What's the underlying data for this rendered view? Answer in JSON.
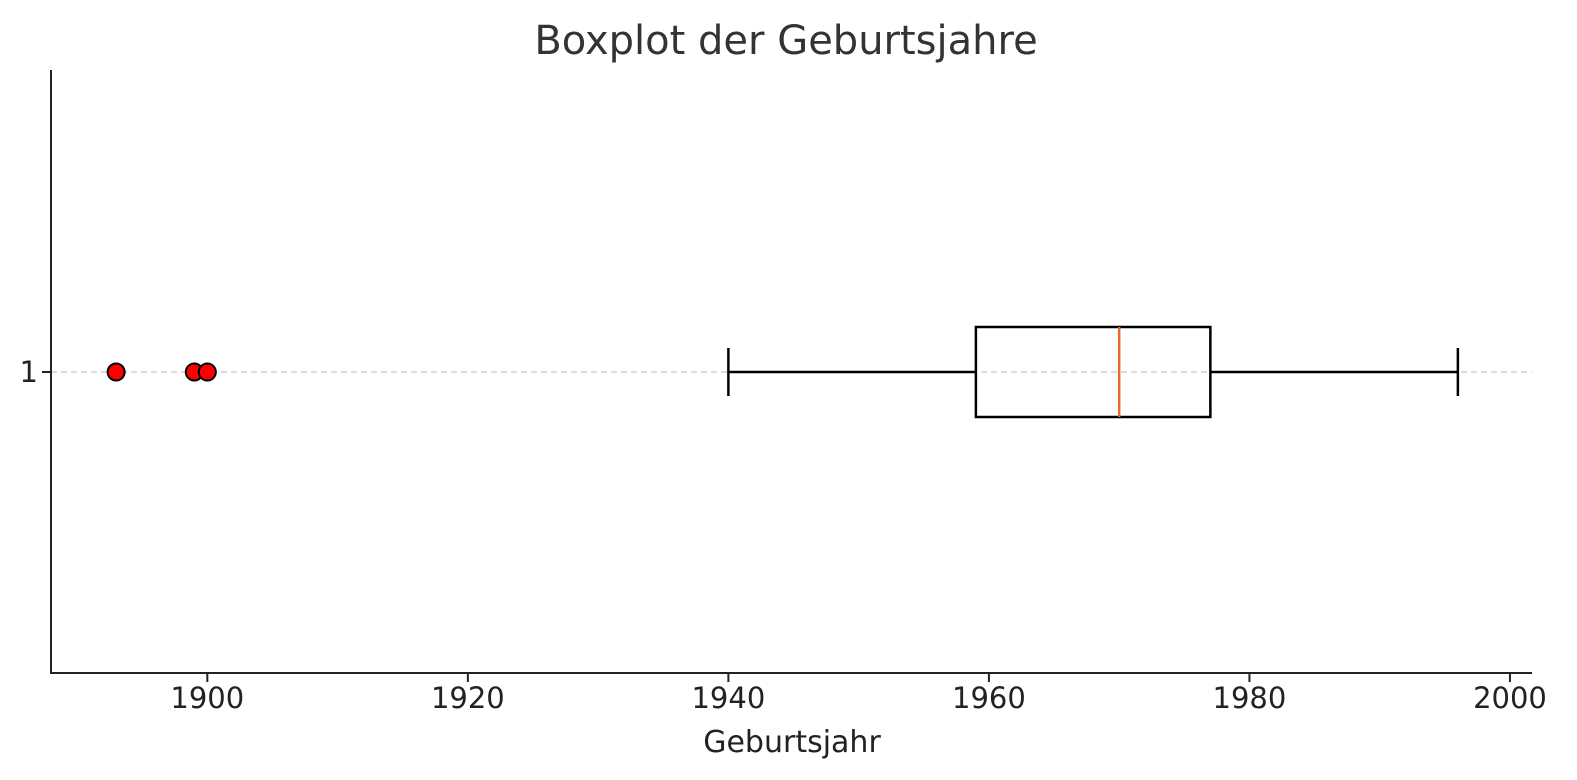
{
  "chart_data": {
    "type": "boxplot",
    "title": "Boxplot der Geburtsjahre",
    "xlabel": "Geburtsjahr",
    "ylabel": "",
    "orientation": "horizontal",
    "xlim": [
      1888,
      2001
    ],
    "xticks": [
      1900,
      1920,
      1940,
      1960,
      1980,
      2000
    ],
    "yticks": [
      "1"
    ],
    "grid": "y-dashed",
    "boxes": [
      {
        "label": "1",
        "whisker_low": 1940,
        "q1": 1959,
        "median": 1970,
        "q3": 1977,
        "whisker_high": 1996,
        "outliers": [
          1893,
          1899,
          1900
        ]
      }
    ],
    "colors": {
      "box": "#000000",
      "median": "#e8692c",
      "outlier_fill": "#ff0000",
      "outlier_edge": "#000000",
      "grid": "#c8c8c8"
    }
  }
}
